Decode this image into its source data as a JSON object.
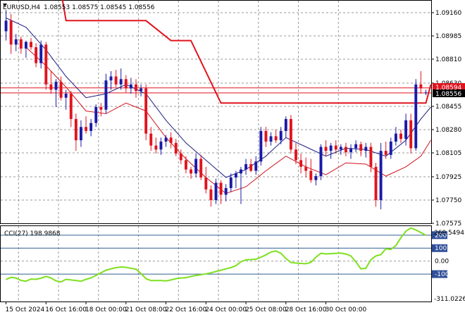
{
  "header": {
    "symbol": "EURUSD,H4",
    "ohlc": "1.08553 1.08575 1.08545 1.08556"
  },
  "indicator": {
    "label": "CCI(27) 198.9868",
    "scale_max_label": "269.5494",
    "scale_min_label": "-311.0226"
  },
  "price_tags": {
    "red_line": "1.08594",
    "current": "1.08556"
  },
  "colors": {
    "bull": "#1a1aa8",
    "bear": "#e0141e",
    "envelope_upper": "#e0141e",
    "fast_ma": "#1c1c80",
    "slow_ma": "#d0141e",
    "cci": "#7ee01e",
    "level_line": "#2f5f8f",
    "tag_blue_bg": "#2f4f9a",
    "tag_black_bg": "#000000",
    "tag_red_bg": "#e0141e"
  },
  "chart_data": [
    {
      "type": "candlestick",
      "symbol": "EURUSD",
      "timeframe": "H4",
      "y_axis_ticks": [
        "1.09160",
        "1.08985",
        "1.08810",
        "1.08630",
        "1.08455",
        "1.08280",
        "1.08105",
        "1.07925",
        "1.07750",
        "1.07575"
      ],
      "ylim": [
        1.07575,
        1.0925
      ],
      "x_axis_ticks": [
        "15 Oct 2024",
        "16 Oct 16:00",
        "18 Oct 00:00",
        "21 Oct 08:00",
        "22 Oct 16:00",
        "24 Oct 00:00",
        "25 Oct 08:00",
        "28 Oct 16:00",
        "30 Oct 00:00"
      ],
      "x_tick_candle_index": [
        0,
        8,
        16,
        24,
        32,
        40,
        48,
        56,
        64
      ],
      "horizontal_lines": [
        1.08594,
        1.08556
      ],
      "candles": [
        {
          "o": 1.0902,
          "h": 1.0918,
          "l": 1.0895,
          "c": 1.091
        },
        {
          "o": 1.091,
          "h": 1.0915,
          "l": 1.0885,
          "c": 1.0892
        },
        {
          "o": 1.0892,
          "h": 1.09,
          "l": 1.0887,
          "c": 1.0896
        },
        {
          "o": 1.0896,
          "h": 1.0898,
          "l": 1.0885,
          "c": 1.0889
        },
        {
          "o": 1.0889,
          "h": 1.0895,
          "l": 1.0882,
          "c": 1.0894
        },
        {
          "o": 1.0894,
          "h": 1.0897,
          "l": 1.0888,
          "c": 1.089
        },
        {
          "o": 1.089,
          "h": 1.0893,
          "l": 1.0875,
          "c": 1.0878
        },
        {
          "o": 1.0878,
          "h": 1.0895,
          "l": 1.0874,
          "c": 1.0892
        },
        {
          "o": 1.0892,
          "h": 1.0894,
          "l": 1.0858,
          "c": 1.0862
        },
        {
          "o": 1.0862,
          "h": 1.0872,
          "l": 1.0855,
          "c": 1.0858
        },
        {
          "o": 1.0858,
          "h": 1.0866,
          "l": 1.0845,
          "c": 1.0864
        },
        {
          "o": 1.0864,
          "h": 1.0868,
          "l": 1.085,
          "c": 1.0852
        },
        {
          "o": 1.0852,
          "h": 1.0858,
          "l": 1.0843,
          "c": 1.0855
        },
        {
          "o": 1.0855,
          "h": 1.0857,
          "l": 1.083,
          "c": 1.0836
        },
        {
          "o": 1.0836,
          "h": 1.084,
          "l": 1.0812,
          "c": 1.082
        },
        {
          "o": 1.082,
          "h": 1.0835,
          "l": 1.0815,
          "c": 1.083
        },
        {
          "o": 1.083,
          "h": 1.0838,
          "l": 1.0825,
          "c": 1.0827
        },
        {
          "o": 1.0827,
          "h": 1.0836,
          "l": 1.0823,
          "c": 1.0833
        },
        {
          "o": 1.0833,
          "h": 1.0847,
          "l": 1.083,
          "c": 1.0845
        },
        {
          "o": 1.0845,
          "h": 1.0848,
          "l": 1.0838,
          "c": 1.0843
        },
        {
          "o": 1.0843,
          "h": 1.087,
          "l": 1.084,
          "c": 1.0865
        },
        {
          "o": 1.0865,
          "h": 1.0872,
          "l": 1.0858,
          "c": 1.0868
        },
        {
          "o": 1.0868,
          "h": 1.0873,
          "l": 1.086,
          "c": 1.0862
        },
        {
          "o": 1.0862,
          "h": 1.0874,
          "l": 1.0858,
          "c": 1.0866
        },
        {
          "o": 1.0866,
          "h": 1.0869,
          "l": 1.0856,
          "c": 1.0859
        },
        {
          "o": 1.0859,
          "h": 1.0867,
          "l": 1.0855,
          "c": 1.0862
        },
        {
          "o": 1.0862,
          "h": 1.0866,
          "l": 1.0852,
          "c": 1.0857
        },
        {
          "o": 1.0857,
          "h": 1.0862,
          "l": 1.0853,
          "c": 1.0859
        },
        {
          "o": 1.0859,
          "h": 1.0862,
          "l": 1.082,
          "c": 1.0825
        },
        {
          "o": 1.0825,
          "h": 1.083,
          "l": 1.0812,
          "c": 1.0816
        },
        {
          "o": 1.0816,
          "h": 1.0822,
          "l": 1.081,
          "c": 1.0813
        },
        {
          "o": 1.0813,
          "h": 1.0822,
          "l": 1.0809,
          "c": 1.0819
        },
        {
          "o": 1.0819,
          "h": 1.0824,
          "l": 1.0815,
          "c": 1.0822
        },
        {
          "o": 1.0822,
          "h": 1.0826,
          "l": 1.0814,
          "c": 1.0818
        },
        {
          "o": 1.0818,
          "h": 1.0821,
          "l": 1.0808,
          "c": 1.081
        },
        {
          "o": 1.081,
          "h": 1.0813,
          "l": 1.0802,
          "c": 1.0805
        },
        {
          "o": 1.0805,
          "h": 1.0808,
          "l": 1.0795,
          "c": 1.0798
        },
        {
          "o": 1.0798,
          "h": 1.08,
          "l": 1.0791,
          "c": 1.0795
        },
        {
          "o": 1.0795,
          "h": 1.081,
          "l": 1.0792,
          "c": 1.0806
        },
        {
          "o": 1.0806,
          "h": 1.0809,
          "l": 1.079,
          "c": 1.0792
        },
        {
          "o": 1.0792,
          "h": 1.08,
          "l": 1.078,
          "c": 1.0783
        },
        {
          "o": 1.0783,
          "h": 1.0786,
          "l": 1.077,
          "c": 1.0775
        },
        {
          "o": 1.0775,
          "h": 1.0791,
          "l": 1.0772,
          "c": 1.0788
        },
        {
          "o": 1.0788,
          "h": 1.079,
          "l": 1.0772,
          "c": 1.0779
        },
        {
          "o": 1.0779,
          "h": 1.0787,
          "l": 1.0774,
          "c": 1.0784
        },
        {
          "o": 1.0784,
          "h": 1.0795,
          "l": 1.0781,
          "c": 1.0792
        },
        {
          "o": 1.0792,
          "h": 1.0797,
          "l": 1.0784,
          "c": 1.0795
        },
        {
          "o": 1.0795,
          "h": 1.08,
          "l": 1.0772,
          "c": 1.0798
        },
        {
          "o": 1.0798,
          "h": 1.0806,
          "l": 1.0794,
          "c": 1.0802
        },
        {
          "o": 1.0802,
          "h": 1.0806,
          "l": 1.0796,
          "c": 1.0797
        },
        {
          "o": 1.0797,
          "h": 1.0808,
          "l": 1.0794,
          "c": 1.0804
        },
        {
          "o": 1.0804,
          "h": 1.083,
          "l": 1.0801,
          "c": 1.0827
        },
        {
          "o": 1.0827,
          "h": 1.083,
          "l": 1.0815,
          "c": 1.0819
        },
        {
          "o": 1.0819,
          "h": 1.0826,
          "l": 1.0816,
          "c": 1.0823
        },
        {
          "o": 1.0823,
          "h": 1.0828,
          "l": 1.0818,
          "c": 1.082
        },
        {
          "o": 1.082,
          "h": 1.083,
          "l": 1.0817,
          "c": 1.0827
        },
        {
          "o": 1.0827,
          "h": 1.0838,
          "l": 1.0822,
          "c": 1.0836
        },
        {
          "o": 1.0836,
          "h": 1.0839,
          "l": 1.081,
          "c": 1.0813
        },
        {
          "o": 1.0813,
          "h": 1.0818,
          "l": 1.0802,
          "c": 1.0805
        },
        {
          "o": 1.0805,
          "h": 1.081,
          "l": 1.0795,
          "c": 1.08
        },
        {
          "o": 1.08,
          "h": 1.0807,
          "l": 1.0792,
          "c": 1.0797
        },
        {
          "o": 1.0797,
          "h": 1.0806,
          "l": 1.0788,
          "c": 1.079
        },
        {
          "o": 1.079,
          "h": 1.0795,
          "l": 1.0786,
          "c": 1.0793
        },
        {
          "o": 1.0793,
          "h": 1.0817,
          "l": 1.079,
          "c": 1.0815
        },
        {
          "o": 1.0815,
          "h": 1.082,
          "l": 1.0808,
          "c": 1.0812
        },
        {
          "o": 1.0812,
          "h": 1.0818,
          "l": 1.0806,
          "c": 1.0816
        },
        {
          "o": 1.0816,
          "h": 1.082,
          "l": 1.081,
          "c": 1.0813
        },
        {
          "o": 1.0813,
          "h": 1.0817,
          "l": 1.0809,
          "c": 1.0815
        },
        {
          "o": 1.0815,
          "h": 1.0818,
          "l": 1.0808,
          "c": 1.0811
        },
        {
          "o": 1.0811,
          "h": 1.0817,
          "l": 1.0806,
          "c": 1.0814
        },
        {
          "o": 1.0814,
          "h": 1.082,
          "l": 1.0811,
          "c": 1.0817
        },
        {
          "o": 1.0817,
          "h": 1.0819,
          "l": 1.0808,
          "c": 1.0812
        },
        {
          "o": 1.0812,
          "h": 1.0818,
          "l": 1.0807,
          "c": 1.0815
        },
        {
          "o": 1.0815,
          "h": 1.0818,
          "l": 1.0796,
          "c": 1.08
        },
        {
          "o": 1.08,
          "h": 1.0803,
          "l": 1.077,
          "c": 1.0775
        },
        {
          "o": 1.0775,
          "h": 1.0818,
          "l": 1.0768,
          "c": 1.0812
        },
        {
          "o": 1.0812,
          "h": 1.0819,
          "l": 1.0806,
          "c": 1.0809
        },
        {
          "o": 1.0809,
          "h": 1.0822,
          "l": 1.0806,
          "c": 1.0819
        },
        {
          "o": 1.0819,
          "h": 1.083,
          "l": 1.0816,
          "c": 1.0825
        },
        {
          "o": 1.0825,
          "h": 1.0828,
          "l": 1.0818,
          "c": 1.0821
        },
        {
          "o": 1.0821,
          "h": 1.084,
          "l": 1.0816,
          "c": 1.0835
        },
        {
          "o": 1.0835,
          "h": 1.084,
          "l": 1.081,
          "c": 1.0814
        },
        {
          "o": 1.0814,
          "h": 1.0866,
          "l": 1.0812,
          "c": 1.0862
        },
        {
          "o": 1.0862,
          "h": 1.0872,
          "l": 1.0855,
          "c": 1.0859
        },
        {
          "o": 1.0856,
          "h": 1.0858,
          "l": 1.0854,
          "c": 1.0856
        }
      ],
      "envelope_upper": [
        {
          "i": 0,
          "v": 1.0932
        },
        {
          "i": 11,
          "v": 1.0932
        },
        {
          "i": 12,
          "v": 1.091
        },
        {
          "i": 28,
          "v": 1.091
        },
        {
          "i": 33,
          "v": 1.0895
        },
        {
          "i": 37,
          "v": 1.0895
        },
        {
          "i": 43,
          "v": 1.0848
        },
        {
          "i": 84,
          "v": 1.0848
        },
        {
          "i": 85,
          "v": 1.0862
        }
      ],
      "fast_ma": [
        {
          "i": 0,
          "v": 1.0912
        },
        {
          "i": 4,
          "v": 1.0905
        },
        {
          "i": 8,
          "v": 1.0888
        },
        {
          "i": 12,
          "v": 1.0868
        },
        {
          "i": 16,
          "v": 1.0852
        },
        {
          "i": 20,
          "v": 1.0855
        },
        {
          "i": 24,
          "v": 1.0862
        },
        {
          "i": 28,
          "v": 1.0855
        },
        {
          "i": 32,
          "v": 1.0835
        },
        {
          "i": 36,
          "v": 1.0818
        },
        {
          "i": 40,
          "v": 1.0805
        },
        {
          "i": 44,
          "v": 1.0792
        },
        {
          "i": 48,
          "v": 1.0798
        },
        {
          "i": 52,
          "v": 1.0808
        },
        {
          "i": 56,
          "v": 1.0822
        },
        {
          "i": 60,
          "v": 1.0815
        },
        {
          "i": 64,
          "v": 1.0808
        },
        {
          "i": 68,
          "v": 1.0814
        },
        {
          "i": 72,
          "v": 1.0813
        },
        {
          "i": 76,
          "v": 1.0808
        },
        {
          "i": 80,
          "v": 1.082
        },
        {
          "i": 83,
          "v": 1.0836
        },
        {
          "i": 85,
          "v": 1.0845
        }
      ],
      "slow_ma": [
        {
          "i": 4,
          "v": 1.089
        },
        {
          "i": 8,
          "v": 1.0876
        },
        {
          "i": 12,
          "v": 1.086
        },
        {
          "i": 16,
          "v": 1.0842
        },
        {
          "i": 20,
          "v": 1.084
        },
        {
          "i": 24,
          "v": 1.0848
        },
        {
          "i": 28,
          "v": 1.0842
        },
        {
          "i": 32,
          "v": 1.0822
        },
        {
          "i": 36,
          "v": 1.0806
        },
        {
          "i": 40,
          "v": 1.0792
        },
        {
          "i": 44,
          "v": 1.078
        },
        {
          "i": 48,
          "v": 1.0785
        },
        {
          "i": 52,
          "v": 1.0797
        },
        {
          "i": 56,
          "v": 1.0808
        },
        {
          "i": 60,
          "v": 1.08
        },
        {
          "i": 64,
          "v": 1.0794
        },
        {
          "i": 68,
          "v": 1.0803
        },
        {
          "i": 72,
          "v": 1.0802
        },
        {
          "i": 76,
          "v": 1.0793
        },
        {
          "i": 80,
          "v": 1.08
        },
        {
          "i": 83,
          "v": 1.0808
        },
        {
          "i": 85,
          "v": 1.082
        }
      ]
    },
    {
      "type": "line",
      "name": "CCI(27)",
      "y_axis_ticks": [
        "200",
        "100",
        "0.00",
        "-100"
      ],
      "reference_levels": [
        200,
        100,
        -100
      ],
      "ylim": [
        -311.0226,
        269.5494
      ],
      "values": [
        -142,
        -125,
        -130,
        -148,
        -155,
        -138,
        -140,
        -132,
        -118,
        -130,
        -152,
        -160,
        -140,
        -145,
        -150,
        -155,
        -140,
        -130,
        -110,
        -90,
        -70,
        -60,
        -50,
        -45,
        -48,
        -55,
        -62,
        -95,
        -135,
        -150,
        -150,
        -150,
        -152,
        -145,
        -135,
        -130,
        -128,
        -118,
        -110,
        -105,
        -98,
        -90,
        -80,
        -70,
        -60,
        -50,
        -35,
        -5,
        10,
        12,
        15,
        30,
        48,
        70,
        78,
        60,
        20,
        -10,
        -15,
        -18,
        -20,
        -10,
        30,
        60,
        55,
        58,
        60,
        62,
        55,
        40,
        -5,
        -60,
        -55,
        10,
        40,
        50,
        95,
        90,
        120,
        180,
        230,
        255,
        240,
        220,
        199
      ]
    }
  ]
}
